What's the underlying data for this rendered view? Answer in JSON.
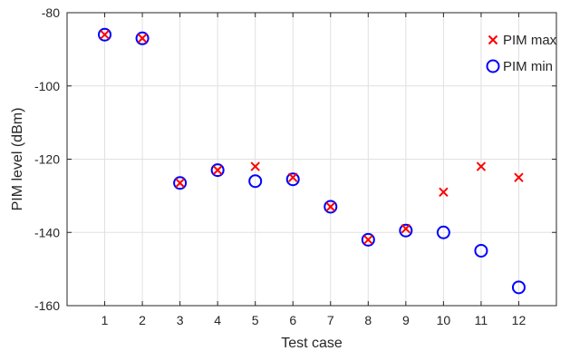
{
  "chart_data": {
    "type": "scatter",
    "title": "",
    "xlabel": "Test case",
    "ylabel": "PIM level (dBm)",
    "xlim": [
      0,
      13
    ],
    "ylim": [
      -160,
      -80
    ],
    "xticks": [
      1,
      2,
      3,
      4,
      5,
      6,
      7,
      8,
      9,
      10,
      11,
      12
    ],
    "yticks": [
      -160,
      -140,
      -120,
      -100,
      -80
    ],
    "grid": true,
    "legend_position": "top-right",
    "x": [
      1,
      2,
      3,
      4,
      5,
      6,
      7,
      8,
      9,
      10,
      11,
      12
    ],
    "series": [
      {
        "name": "PIM max",
        "marker": "x",
        "color": "#ff0000",
        "values": [
          -86,
          -87,
          -126.5,
          -123,
          -122,
          -125,
          -133,
          -142,
          -139,
          -129,
          -122,
          -125
        ]
      },
      {
        "name": "PIM min",
        "marker": "o",
        "color": "#0000ff",
        "values": [
          -86,
          -87,
          -126.5,
          -123,
          -126,
          -125.5,
          -133,
          -142,
          -139.5,
          -140,
          -145,
          -155
        ]
      }
    ]
  }
}
